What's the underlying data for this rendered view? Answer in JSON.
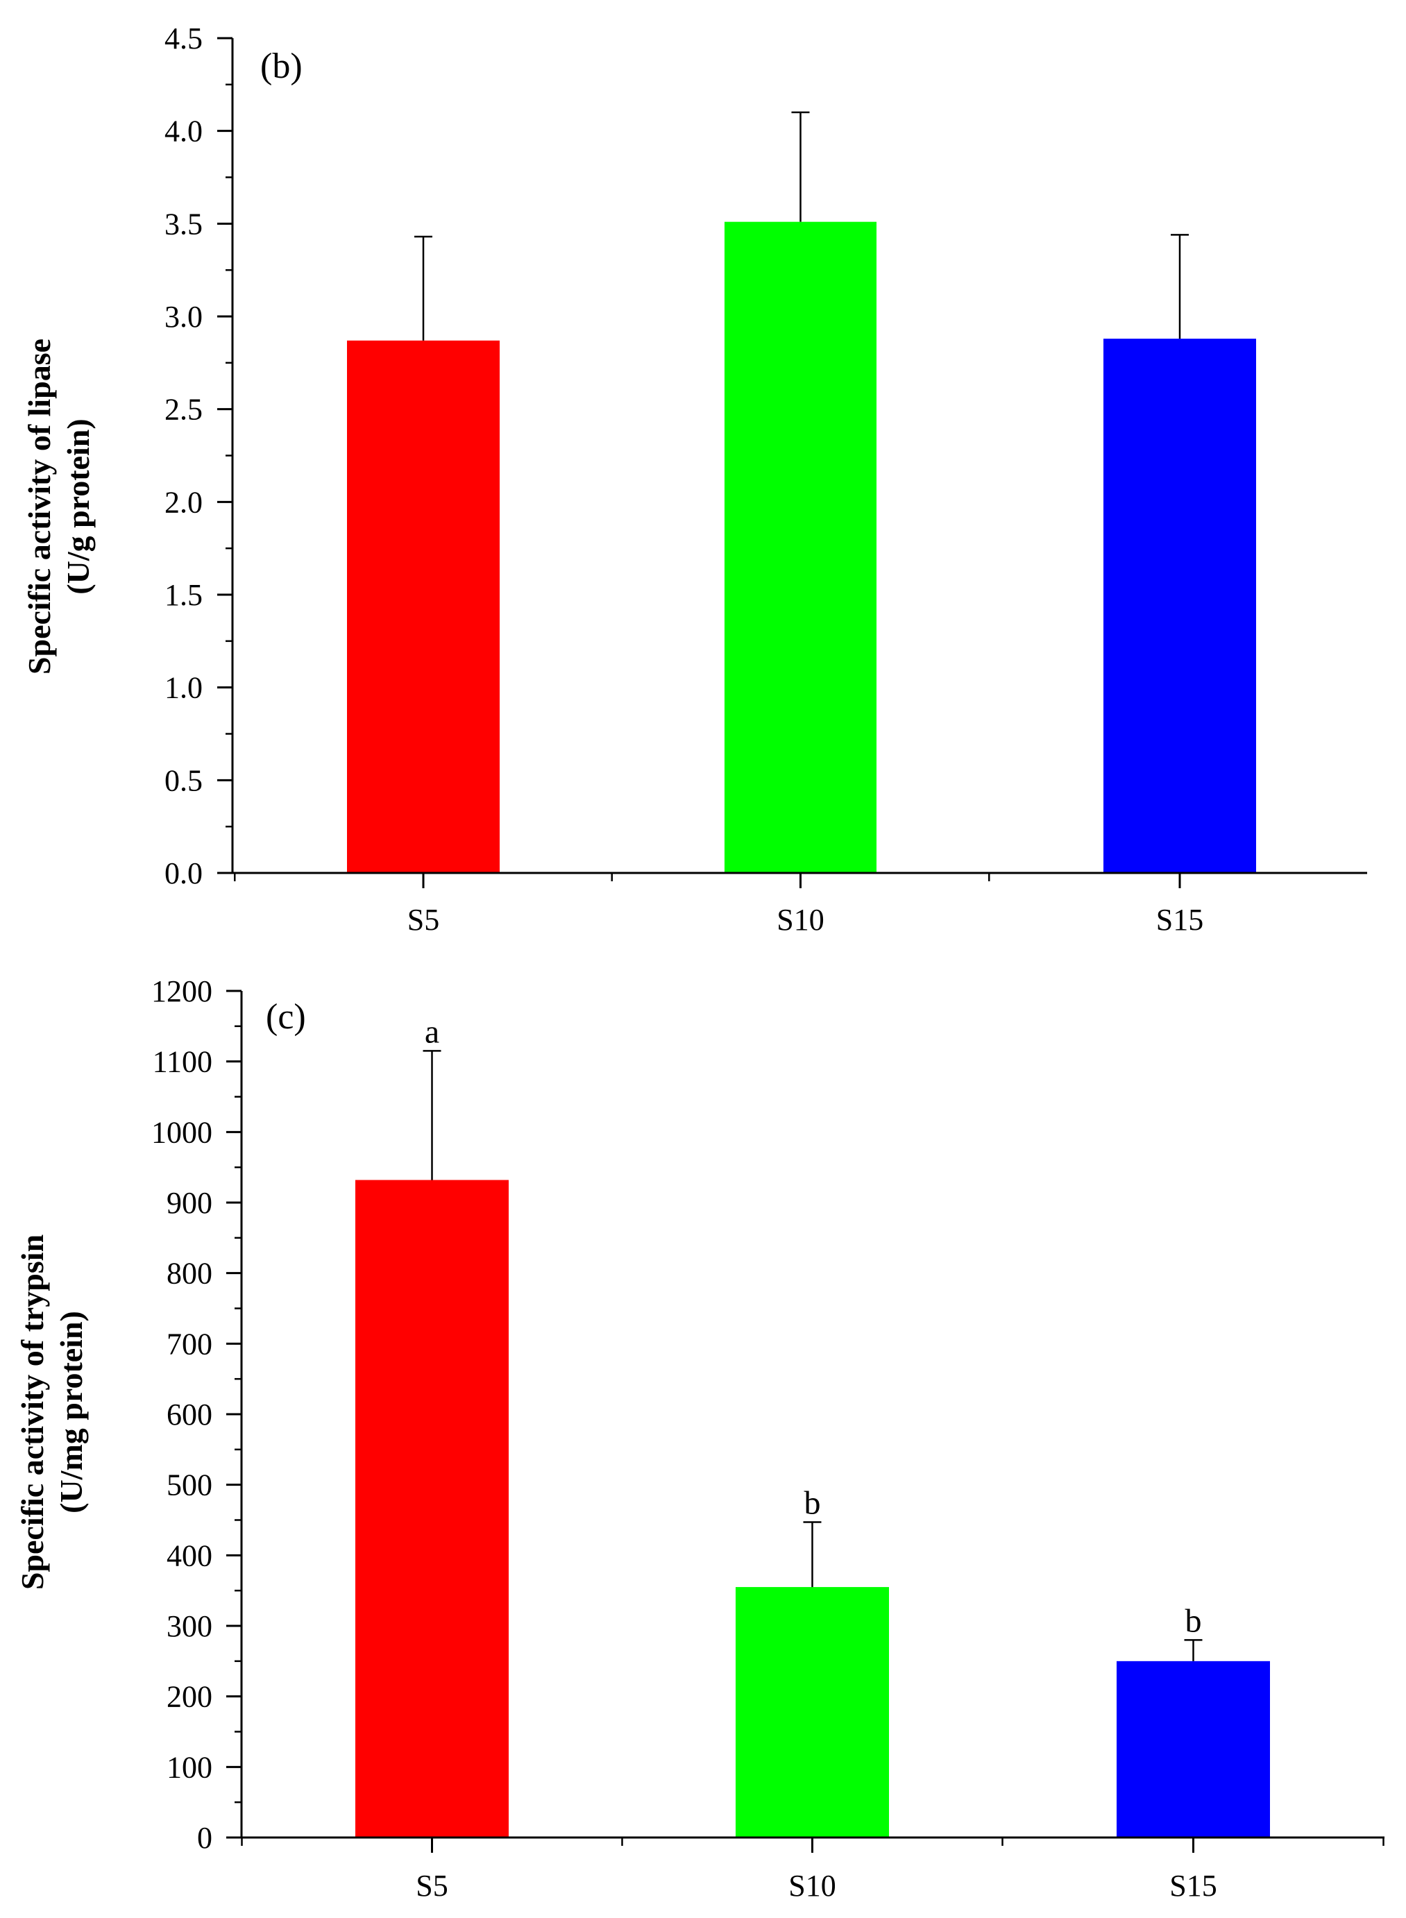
{
  "chart_data": [
    {
      "type": "bar",
      "panel_label": "(b)",
      "categories": [
        "S5",
        "S10",
        "S15"
      ],
      "values": [
        2.87,
        3.51,
        2.88
      ],
      "errors": [
        0.56,
        0.59,
        0.56
      ],
      "colors": [
        "#ff0000",
        "#00ff00",
        "#0000ff"
      ],
      "significance": [
        "",
        "",
        ""
      ],
      "ylabel_line1": "Specific activity of lipase",
      "ylabel_line2": "(U/g protein)",
      "xlabel": "",
      "ylim": [
        0,
        4.5
      ],
      "major_ticks": [
        0,
        0.5,
        1,
        1.5,
        2,
        2.5,
        3,
        3.5,
        4,
        4.5
      ],
      "tick_labels": [
        "0.0",
        "0.5",
        "1.0",
        "1.5",
        "2.0",
        "2.5",
        "3.0",
        "3.5",
        "4.0",
        "4.5"
      ],
      "minor_step": 0.25,
      "grid": false
    },
    {
      "type": "bar",
      "panel_label": "(c)",
      "categories": [
        "S5",
        "S10",
        "S15"
      ],
      "values": [
        932,
        355,
        250
      ],
      "errors": [
        183,
        92,
        30
      ],
      "colors": [
        "#ff0000",
        "#00ff00",
        "#0000ff"
      ],
      "significance": [
        "a",
        "b",
        "b"
      ],
      "ylabel_line1": "Specific activity of trypsin",
      "ylabel_line2": "(U/mg protein)",
      "xlabel": "",
      "ylim": [
        0,
        1200
      ],
      "major_ticks": [
        0,
        100,
        200,
        300,
        400,
        500,
        600,
        700,
        800,
        900,
        1000,
        1100,
        1200
      ],
      "tick_labels": [
        "0",
        "100",
        "200",
        "300",
        "400",
        "500",
        "600",
        "700",
        "800",
        "900",
        "1000",
        "1100",
        "1200"
      ],
      "minor_step": 50,
      "grid": false
    }
  ]
}
